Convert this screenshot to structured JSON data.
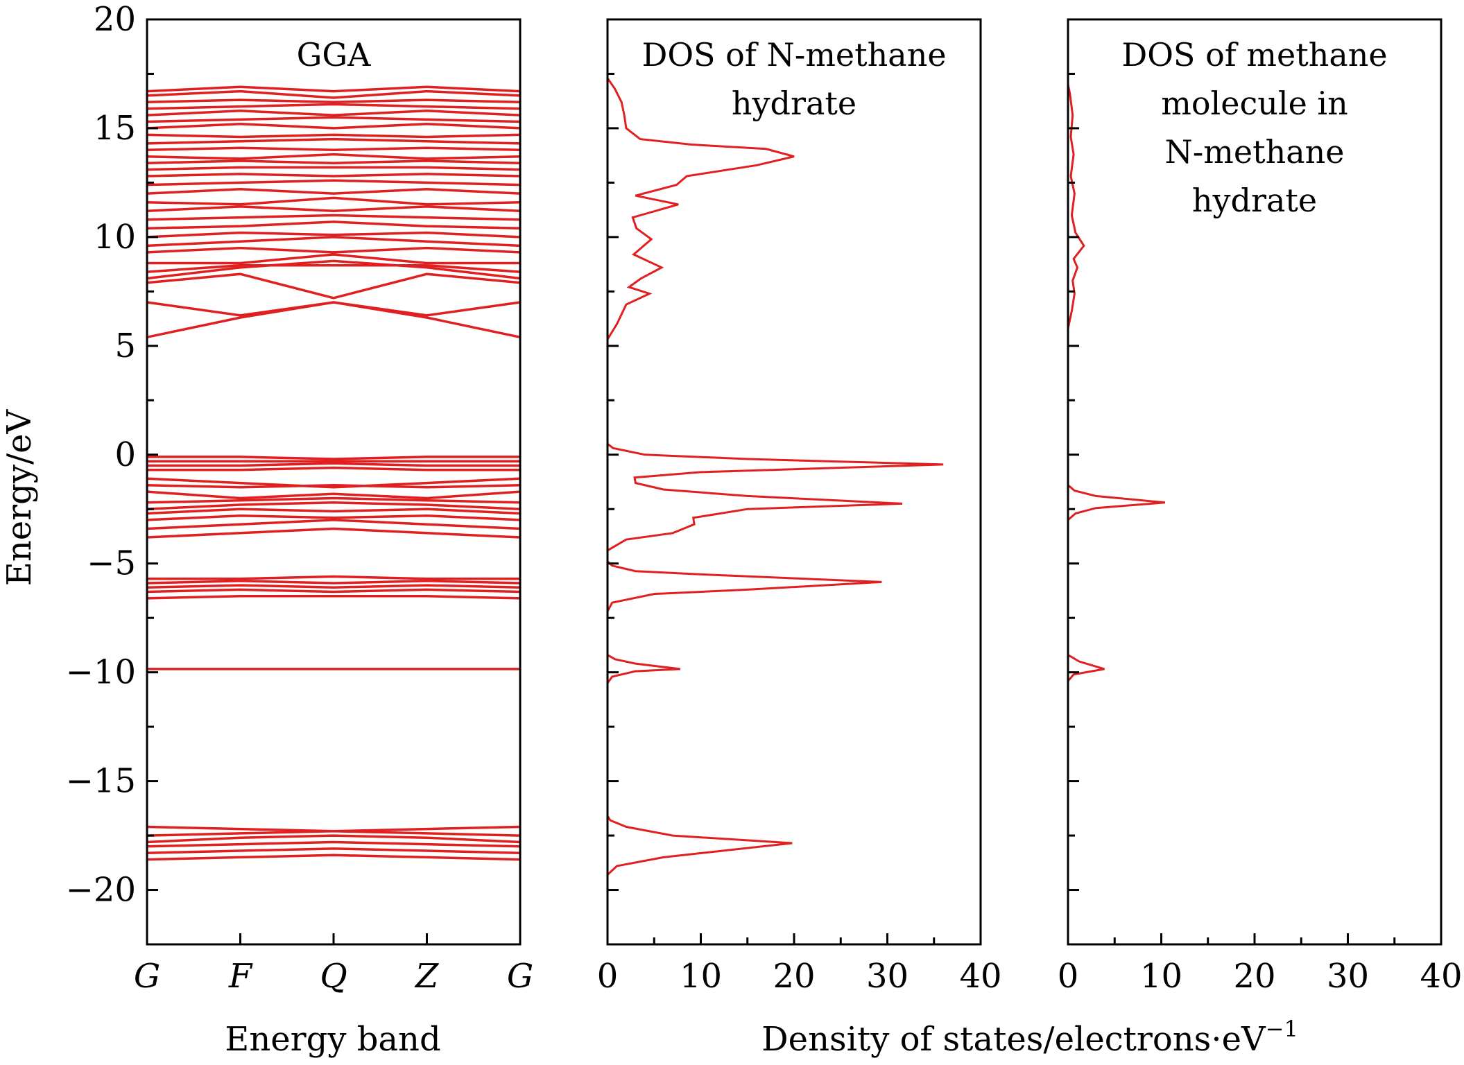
{
  "chart_data": {
    "type": "line",
    "color": "#e02020",
    "y_axis": {
      "label": "Energy/eV",
      "ylim": [
        -22.5,
        20
      ],
      "ticks": [
        20,
        15,
        10,
        5,
        0,
        -5,
        -10,
        -15,
        -20
      ],
      "tick_labels": [
        "20",
        "15",
        "10",
        "5",
        "0",
        "−5",
        "−10",
        "−15",
        "−20"
      ]
    },
    "bottom_labels": {
      "band": "Energy band",
      "dos": "Density of states/electrons·eV",
      "dos_sup": "−1"
    },
    "panels": [
      {
        "id": "band",
        "title": [
          "GGA"
        ],
        "kpoints": [
          "G",
          "F",
          "Q",
          "Z",
          "G"
        ],
        "bands": [
          [
            -18.6,
            -18.5,
            -18.4,
            -18.5,
            -18.6
          ],
          [
            -18.3,
            -18.2,
            -18.1,
            -18.2,
            -18.3
          ],
          [
            -18.0,
            -17.9,
            -17.8,
            -17.9,
            -18.0
          ],
          [
            -17.8,
            -17.6,
            -17.5,
            -17.6,
            -17.8
          ],
          [
            -17.5,
            -17.4,
            -17.3,
            -17.4,
            -17.5
          ],
          [
            -17.1,
            -17.2,
            -17.3,
            -17.2,
            -17.1
          ],
          [
            -9.85,
            -9.85,
            -9.85,
            -9.85,
            -9.85
          ],
          [
            -6.6,
            -6.5,
            -6.5,
            -6.5,
            -6.6
          ],
          [
            -6.3,
            -6.2,
            -6.3,
            -6.2,
            -6.3
          ],
          [
            -6.1,
            -6.0,
            -6.1,
            -6.0,
            -6.1
          ],
          [
            -5.9,
            -5.8,
            -5.9,
            -5.8,
            -5.9
          ],
          [
            -5.7,
            -5.7,
            -5.6,
            -5.7,
            -5.7
          ],
          [
            -3.8,
            -3.6,
            -3.4,
            -3.6,
            -3.8
          ],
          [
            -3.4,
            -3.2,
            -3.0,
            -3.2,
            -3.4
          ],
          [
            -3.0,
            -2.8,
            -2.9,
            -2.8,
            -3.0
          ],
          [
            -2.7,
            -2.5,
            -2.6,
            -2.5,
            -2.7
          ],
          [
            -2.5,
            -2.3,
            -2.2,
            -2.3,
            -2.5
          ],
          [
            -2.2,
            -2.1,
            -2.0,
            -2.1,
            -2.2
          ],
          [
            -1.7,
            -2.0,
            -1.8,
            -2.0,
            -1.7
          ],
          [
            -1.4,
            -1.5,
            -1.4,
            -1.5,
            -1.4
          ],
          [
            -1.1,
            -1.3,
            -1.5,
            -1.3,
            -1.1
          ],
          [
            -0.7,
            -0.7,
            -0.6,
            -0.7,
            -0.7
          ],
          [
            -0.5,
            -0.5,
            -0.4,
            -0.5,
            -0.5
          ],
          [
            -0.3,
            -0.3,
            -0.3,
            -0.3,
            -0.3
          ],
          [
            -0.1,
            -0.1,
            -0.2,
            -0.1,
            -0.1
          ],
          [
            5.4,
            6.3,
            7.0,
            6.3,
            5.4
          ],
          [
            7.0,
            6.4,
            7.0,
            6.4,
            7.0
          ],
          [
            7.9,
            8.3,
            7.2,
            8.3,
            7.9
          ],
          [
            8.1,
            8.6,
            8.9,
            8.6,
            8.1
          ],
          [
            8.4,
            8.7,
            8.7,
            8.7,
            8.4
          ],
          [
            8.8,
            8.8,
            9.2,
            8.8,
            8.8
          ],
          [
            9.3,
            9.5,
            9.3,
            9.5,
            9.3
          ],
          [
            9.6,
            9.8,
            10.0,
            9.8,
            9.6
          ],
          [
            10.0,
            10.2,
            10.1,
            10.2,
            10.0
          ],
          [
            10.4,
            10.5,
            10.7,
            10.5,
            10.4
          ],
          [
            10.8,
            10.9,
            11.0,
            10.9,
            10.8
          ],
          [
            11.2,
            11.4,
            11.2,
            11.4,
            11.2
          ],
          [
            11.6,
            11.5,
            11.8,
            11.5,
            11.6
          ],
          [
            12.0,
            12.2,
            12.0,
            12.2,
            12.0
          ],
          [
            12.4,
            12.5,
            12.6,
            12.5,
            12.4
          ],
          [
            12.8,
            12.9,
            12.8,
            12.9,
            12.8
          ],
          [
            13.1,
            13.2,
            13.2,
            13.2,
            13.1
          ],
          [
            13.4,
            13.5,
            13.4,
            13.5,
            13.4
          ],
          [
            13.7,
            13.6,
            13.8,
            13.6,
            13.7
          ],
          [
            14.0,
            14.1,
            14.0,
            14.1,
            14.0
          ],
          [
            14.3,
            14.4,
            14.5,
            14.4,
            14.3
          ],
          [
            14.7,
            14.6,
            14.7,
            14.6,
            14.7
          ],
          [
            15.0,
            15.2,
            15.0,
            15.2,
            15.0
          ],
          [
            15.3,
            15.4,
            15.5,
            15.4,
            15.3
          ],
          [
            15.6,
            15.8,
            15.6,
            15.8,
            15.6
          ],
          [
            15.9,
            16.0,
            16.1,
            16.0,
            15.9
          ],
          [
            16.2,
            16.3,
            16.2,
            16.3,
            16.2
          ],
          [
            16.5,
            16.7,
            16.4,
            16.7,
            16.5
          ],
          [
            16.7,
            16.9,
            16.7,
            16.9,
            16.7
          ]
        ]
      },
      {
        "id": "dos_nmh",
        "title": [
          "DOS of N-methane",
          "hydrate"
        ],
        "xlim": [
          0,
          40
        ],
        "xticks": [
          0,
          10,
          20,
          30,
          40
        ],
        "xtick_labels": [
          "0",
          "10",
          "20",
          "30",
          "40"
        ],
        "curve": [
          [
            0,
            -22.5
          ],
          [
            0,
            -19.3
          ],
          [
            1,
            -18.9
          ],
          [
            6,
            -18.5
          ],
          [
            19.8,
            -17.85
          ],
          [
            7,
            -17.5
          ],
          [
            2,
            -17.1
          ],
          [
            0.3,
            -16.8
          ],
          [
            0,
            -16.6
          ],
          [
            0,
            -10.5
          ],
          [
            0.5,
            -10.2
          ],
          [
            3,
            -9.95
          ],
          [
            7.8,
            -9.85
          ],
          [
            3,
            -9.6
          ],
          [
            0.8,
            -9.4
          ],
          [
            0,
            -9.2
          ],
          [
            0,
            -7.2
          ],
          [
            0.5,
            -6.8
          ],
          [
            5,
            -6.4
          ],
          [
            15,
            -6.2
          ],
          [
            29.4,
            -5.85
          ],
          [
            10,
            -5.5
          ],
          [
            3,
            -5.35
          ],
          [
            0.5,
            -5.1
          ],
          [
            0,
            -4.9
          ],
          [
            0,
            -4.4
          ],
          [
            2,
            -3.9
          ],
          [
            7,
            -3.6
          ],
          [
            9.3,
            -3.2
          ],
          [
            9.2,
            -2.9
          ],
          [
            15,
            -2.5
          ],
          [
            31.6,
            -2.25
          ],
          [
            15,
            -1.9
          ],
          [
            6,
            -1.6
          ],
          [
            3,
            -1.3
          ],
          [
            2.9,
            -1.05
          ],
          [
            10,
            -0.8
          ],
          [
            36,
            -0.45
          ],
          [
            15,
            -0.2
          ],
          [
            4,
            0
          ],
          [
            0.6,
            0.3
          ],
          [
            0,
            0.5
          ],
          [
            0,
            5.3
          ],
          [
            1,
            6.0
          ],
          [
            2,
            6.9
          ],
          [
            4.5,
            7.4
          ],
          [
            2.3,
            7.7
          ],
          [
            3.6,
            8.1
          ],
          [
            5.8,
            8.6
          ],
          [
            2.8,
            9.2
          ],
          [
            4.7,
            9.9
          ],
          [
            3.1,
            10.4
          ],
          [
            2.7,
            10.9
          ],
          [
            7.6,
            11.5
          ],
          [
            3,
            11.9
          ],
          [
            7.4,
            12.4
          ],
          [
            8.5,
            12.8
          ],
          [
            16,
            13.3
          ],
          [
            20,
            13.7
          ],
          [
            17,
            14.05
          ],
          [
            9,
            14.25
          ],
          [
            3.5,
            14.5
          ],
          [
            2,
            15.0
          ],
          [
            1.8,
            15.6
          ],
          [
            1.5,
            16.2
          ],
          [
            0.8,
            16.8
          ],
          [
            0,
            17.3
          ]
        ]
      },
      {
        "id": "dos_methane",
        "title": [
          "DOS of methane",
          "molecule in",
          "N-methane",
          "hydrate"
        ],
        "xlim": [
          0,
          40
        ],
        "xticks": [
          0,
          10,
          20,
          30,
          40
        ],
        "xtick_labels": [
          "0",
          "10",
          "20",
          "30",
          "40"
        ],
        "curve": [
          [
            0,
            -22.5
          ],
          [
            0,
            -10.4
          ],
          [
            0.6,
            -10.1
          ],
          [
            3.9,
            -9.85
          ],
          [
            1.2,
            -9.5
          ],
          [
            0,
            -9.2
          ],
          [
            0,
            -3.0
          ],
          [
            0.8,
            -2.7
          ],
          [
            3,
            -2.45
          ],
          [
            10.4,
            -2.2
          ],
          [
            3,
            -1.9
          ],
          [
            0.7,
            -1.65
          ],
          [
            0,
            -1.4
          ],
          [
            0,
            5.8
          ],
          [
            0.4,
            6.6
          ],
          [
            0.7,
            7.4
          ],
          [
            0.5,
            8.0
          ],
          [
            1.0,
            8.6
          ],
          [
            0.6,
            9.0
          ],
          [
            1.7,
            9.6
          ],
          [
            0.8,
            10.2
          ],
          [
            0.4,
            11.0
          ],
          [
            0.7,
            12.0
          ],
          [
            0.3,
            12.8
          ],
          [
            0.6,
            13.8
          ],
          [
            0.3,
            14.6
          ],
          [
            0.5,
            15.6
          ],
          [
            0.2,
            16.6
          ],
          [
            0,
            17.0
          ]
        ]
      }
    ]
  }
}
